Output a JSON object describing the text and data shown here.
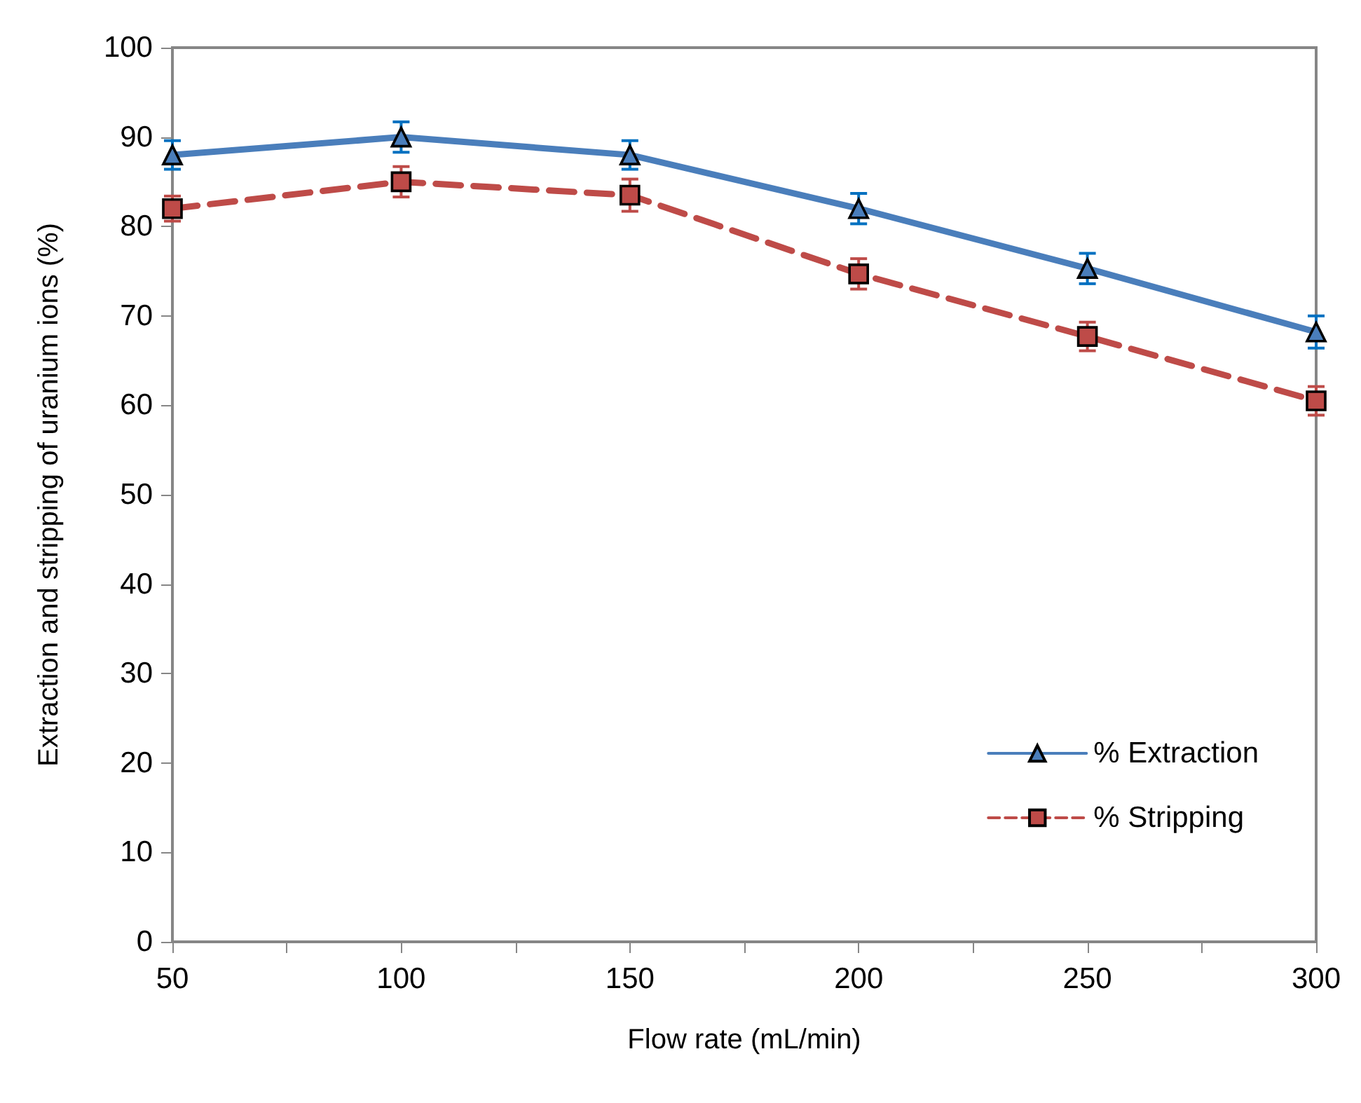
{
  "chart_data": {
    "type": "line",
    "xlabel": "Flow rate (mL/min)",
    "ylabel": "Extraction and stripping of uranium ions (%)",
    "x": [
      50,
      100,
      150,
      200,
      250,
      300
    ],
    "series": [
      {
        "name": "% Extraction",
        "color": "#4a7ebb",
        "marker": "triangle",
        "line_style": "solid",
        "values": [
          88,
          90,
          88,
          82,
          75.3,
          68.2
        ],
        "errors": [
          1.6,
          1.7,
          1.6,
          1.7,
          1.7,
          1.8
        ]
      },
      {
        "name": "% Stripping",
        "color": "#be4b48",
        "marker": "square",
        "line_style": "dashed",
        "values": [
          82,
          85,
          83.5,
          74.7,
          67.7,
          60.5
        ],
        "errors": [
          1.4,
          1.7,
          1.8,
          1.7,
          1.6,
          1.6
        ]
      }
    ],
    "xlim": [
      50,
      300
    ],
    "xticks": [
      50,
      {
        "value": 75,
        "label": null
      },
      100,
      {
        "value": 125,
        "label": null
      },
      150,
      {
        "value": 175,
        "label": null
      },
      200,
      {
        "value": 225,
        "label": null
      },
      250,
      {
        "value": 275,
        "label": null
      },
      300
    ],
    "ylim": [
      0,
      100
    ],
    "yticks": [
      0,
      10,
      20,
      30,
      40,
      50,
      60,
      70,
      80,
      90,
      100
    ],
    "grid": false,
    "legend": "bottom right"
  }
}
